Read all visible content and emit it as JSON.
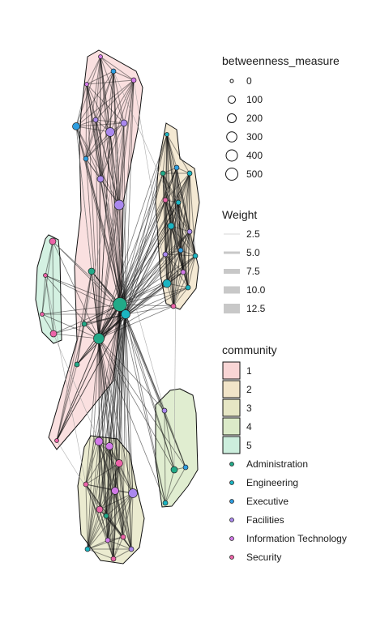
{
  "legend": {
    "size_title": "betweenness_measure",
    "size_labels": [
      "0",
      "100",
      "200",
      "300",
      "400",
      "500"
    ],
    "weight_title": "Weight",
    "weight_labels": [
      "2.5",
      "5.0",
      "7.5",
      "10.0",
      "12.5"
    ],
    "community_title": "community",
    "community_labels": [
      "1",
      "2",
      "3",
      "4",
      "5"
    ],
    "community_colors": [
      "#f8d5d5",
      "#f1e4c8",
      "#e6e6c4",
      "#dbeac8",
      "#cceedd"
    ],
    "dept_labels": [
      "Administration",
      "Engineering",
      "Executive",
      "Facilities",
      "Information Technology",
      "Security"
    ],
    "dept_colors": [
      "#22aa88",
      "#1bb5c2",
      "#2f9ee0",
      "#aa88ee",
      "#d27ae8",
      "#ec64a8"
    ]
  }
}
